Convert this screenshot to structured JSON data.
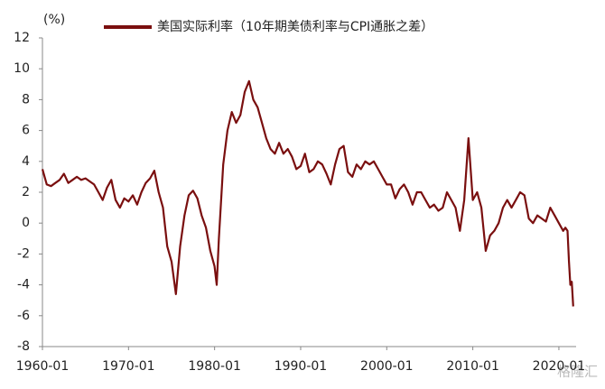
{
  "chart_data": {
    "type": "line",
    "unit_label": "(%)",
    "watermark": "格隆汇",
    "legend": "top",
    "x": [
      "1960-01",
      "1960-07",
      "1961-01",
      "1961-07",
      "1962-01",
      "1962-07",
      "1963-01",
      "1963-07",
      "1964-01",
      "1964-07",
      "1965-01",
      "1965-07",
      "1966-01",
      "1966-07",
      "1967-01",
      "1967-07",
      "1968-01",
      "1968-07",
      "1969-01",
      "1969-07",
      "1970-01",
      "1970-07",
      "1971-01",
      "1971-07",
      "1972-01",
      "1972-07",
      "1973-01",
      "1973-07",
      "1974-01",
      "1974-07",
      "1975-01",
      "1975-07",
      "1976-01",
      "1976-07",
      "1977-01",
      "1977-07",
      "1978-01",
      "1978-07",
      "1979-01",
      "1979-07",
      "1980-01",
      "1980-04",
      "1980-07",
      "1981-01",
      "1981-07",
      "1982-01",
      "1982-07",
      "1983-01",
      "1983-07",
      "1984-01",
      "1984-07",
      "1985-01",
      "1985-07",
      "1986-01",
      "1986-07",
      "1987-01",
      "1987-07",
      "1988-01",
      "1988-07",
      "1989-01",
      "1989-07",
      "1990-01",
      "1990-07",
      "1991-01",
      "1991-07",
      "1992-01",
      "1992-07",
      "1993-01",
      "1993-07",
      "1994-01",
      "1994-07",
      "1995-01",
      "1995-07",
      "1996-01",
      "1996-07",
      "1997-01",
      "1997-07",
      "1998-01",
      "1998-07",
      "1999-01",
      "1999-07",
      "2000-01",
      "2000-07",
      "2001-01",
      "2001-07",
      "2002-01",
      "2002-07",
      "2003-01",
      "2003-07",
      "2004-01",
      "2004-07",
      "2005-01",
      "2005-07",
      "2006-01",
      "2006-07",
      "2007-01",
      "2007-07",
      "2008-01",
      "2008-07",
      "2009-01",
      "2009-07",
      "2010-01",
      "2010-07",
      "2011-01",
      "2011-07",
      "2012-01",
      "2012-07",
      "2013-01",
      "2013-07",
      "2014-01",
      "2014-07",
      "2015-01",
      "2015-07",
      "2016-01",
      "2016-07",
      "2017-01",
      "2017-07",
      "2018-01",
      "2018-07",
      "2019-01",
      "2019-07",
      "2020-01",
      "2020-07",
      "2020-10",
      "2021-01",
      "2021-03",
      "2021-05",
      "2021-07",
      "2021-09"
    ],
    "series": [
      {
        "name": "美国实际利率（10年期美债利率与CPI通胀之差）",
        "color": "#7a0f0f",
        "values": [
          3.5,
          2.5,
          2.4,
          2.6,
          2.8,
          3.2,
          2.6,
          2.8,
          3.0,
          2.8,
          2.9,
          2.7,
          2.5,
          2.0,
          1.5,
          2.3,
          2.8,
          1.5,
          1.0,
          1.6,
          1.4,
          1.8,
          1.2,
          2.0,
          2.6,
          2.9,
          3.4,
          2.0,
          1.0,
          -1.5,
          -2.5,
          -4.6,
          -1.5,
          0.5,
          1.8,
          2.1,
          1.6,
          0.5,
          -0.3,
          -1.8,
          -2.8,
          -4.0,
          -1.0,
          3.8,
          6.0,
          7.2,
          6.5,
          7.0,
          8.5,
          9.2,
          8.0,
          7.5,
          6.5,
          5.5,
          4.8,
          4.5,
          5.2,
          4.5,
          4.8,
          4.3,
          3.5,
          3.7,
          4.5,
          3.3,
          3.5,
          4.0,
          3.8,
          3.2,
          2.5,
          3.8,
          4.8,
          5.0,
          3.3,
          3.0,
          3.8,
          3.5,
          4.0,
          3.8,
          4.0,
          3.5,
          3.0,
          2.5,
          2.5,
          1.6,
          2.2,
          2.5,
          2.0,
          1.2,
          2.0,
          2.0,
          1.5,
          1.0,
          1.2,
          0.8,
          1.0,
          2.0,
          1.5,
          1.0,
          -0.5,
          1.5,
          5.5,
          1.5,
          2.0,
          1.0,
          -1.8,
          -0.8,
          -0.5,
          0,
          1.0,
          1.5,
          1.0,
          1.5,
          2.0,
          1.8,
          0.3,
          0.0,
          0.5,
          0.3,
          0.1,
          1.0,
          0.5,
          0.0,
          -0.5,
          -0.3,
          -0.5,
          -2.5,
          -4.0,
          -3.8,
          -5.4
        ]
      }
    ],
    "xlim": [
      "1960-01",
      "2022-01"
    ],
    "xticks": [
      "1960-01",
      "1970-01",
      "1980-01",
      "1990-01",
      "2000-01",
      "2010-01",
      "2020-01"
    ],
    "ylim": [
      -8,
      12
    ],
    "yticks": [
      -8,
      -6,
      -4,
      -2,
      0,
      2,
      4,
      6,
      8,
      10,
      12
    ]
  }
}
